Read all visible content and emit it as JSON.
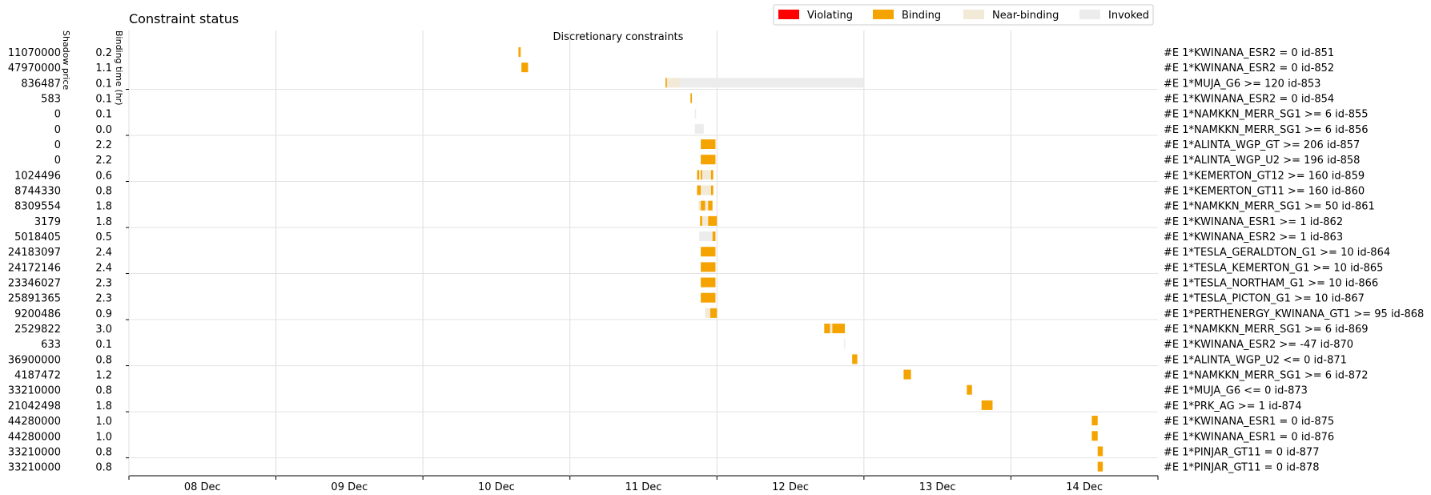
{
  "chart_data": {
    "type": "gantt",
    "title": "Constraint status",
    "subtitle": "Discretionary constraints",
    "col_headers": {
      "shadow_price": "Shadow price",
      "binding_time": "Binding time (hr)"
    },
    "legend": [
      {
        "key": "violating",
        "label": "Violating",
        "color": "#ff0000"
      },
      {
        "key": "binding",
        "label": "Binding",
        "color": "#f5a300"
      },
      {
        "key": "near",
        "label": "Near-binding",
        "color": "#f2ead6"
      },
      {
        "key": "invoked",
        "label": "Invoked",
        "color": "#ececec"
      }
    ],
    "legend_placement": "top-right",
    "x_ticks": [
      "08 Dec",
      "09 Dec",
      "10 Dec",
      "11 Dec",
      "12 Dec",
      "13 Dec",
      "14 Dec"
    ],
    "x_range_days": [
      7.5,
      14.5
    ],
    "grid": true,
    "rows": [
      {
        "shadow": "11070000",
        "time": "0.2",
        "label": "#E 1*KWINANA_ESR2 = 0 id-851",
        "segments": [
          {
            "start": 10.15,
            "end": 10.165,
            "status": "binding"
          }
        ]
      },
      {
        "shadow": "47970000",
        "time": "1.1",
        "label": "#E 1*KWINANA_ESR2 = 0 id-852",
        "segments": [
          {
            "start": 10.17,
            "end": 10.215,
            "status": "binding"
          }
        ]
      },
      {
        "shadow": "836487",
        "time": "0.1",
        "label": "#E 1*MUJA_G6 >= 120 id-853",
        "segments": [
          {
            "start": 11.15,
            "end": 11.16,
            "status": "binding"
          },
          {
            "start": 11.16,
            "end": 11.25,
            "status": "near"
          },
          {
            "start": 11.25,
            "end": 12.5,
            "status": "invoked"
          }
        ]
      },
      {
        "shadow": "583",
        "time": "0.1",
        "label": "#E 1*KWINANA_ESR2 = 0 id-854",
        "segments": [
          {
            "start": 11.32,
            "end": 11.33,
            "status": "binding"
          }
        ]
      },
      {
        "shadow": "0",
        "time": "0.1",
        "label": "#E 1*NAMKKN_MERR_SG1 >= 6 id-855",
        "segments": [
          {
            "start": 11.35,
            "end": 11.355,
            "status": "invoked"
          }
        ]
      },
      {
        "shadow": "0",
        "time": "0.0",
        "label": "#E 1*NAMKKN_MERR_SG1 >= 6 id-856",
        "segments": [
          {
            "start": 11.35,
            "end": 11.41,
            "status": "invoked"
          }
        ]
      },
      {
        "shadow": "0",
        "time": "2.2",
        "label": "#E 1*ALINTA_WGP_GT >= 206 id-857",
        "segments": [
          {
            "start": 11.39,
            "end": 11.49,
            "status": "binding"
          }
        ]
      },
      {
        "shadow": "0",
        "time": "2.2",
        "label": "#E 1*ALINTA_WGP_U2 >= 196 id-858",
        "segments": [
          {
            "start": 11.39,
            "end": 11.49,
            "status": "binding"
          }
        ]
      },
      {
        "shadow": "1024496",
        "time": "0.6",
        "label": "#E 1*KEMERTON_GT12 >= 160 id-859",
        "segments": [
          {
            "start": 11.365,
            "end": 11.38,
            "status": "binding"
          },
          {
            "start": 11.38,
            "end": 11.39,
            "status": "near"
          },
          {
            "start": 11.39,
            "end": 11.4,
            "status": "binding"
          },
          {
            "start": 11.4,
            "end": 11.46,
            "status": "near"
          },
          {
            "start": 11.46,
            "end": 11.475,
            "status": "binding"
          }
        ]
      },
      {
        "shadow": "8744330",
        "time": "0.8",
        "label": "#E 1*KEMERTON_GT11 >= 160 id-860",
        "segments": [
          {
            "start": 11.365,
            "end": 11.39,
            "status": "binding"
          },
          {
            "start": 11.39,
            "end": 11.46,
            "status": "near"
          },
          {
            "start": 11.46,
            "end": 11.475,
            "status": "binding"
          }
        ]
      },
      {
        "shadow": "8309554",
        "time": "1.8",
        "label": "#E 1*NAMKKN_MERR_SG1 >= 50 id-861",
        "segments": [
          {
            "start": 11.375,
            "end": 11.39,
            "status": "near"
          },
          {
            "start": 11.39,
            "end": 11.42,
            "status": "binding"
          },
          {
            "start": 11.42,
            "end": 11.44,
            "status": "near"
          },
          {
            "start": 11.44,
            "end": 11.47,
            "status": "binding"
          }
        ]
      },
      {
        "shadow": "3179",
        "time": "1.8",
        "label": "#E 1*KWINANA_ESR1 >= 1 id-862",
        "segments": [
          {
            "start": 11.385,
            "end": 11.4,
            "status": "binding"
          },
          {
            "start": 11.4,
            "end": 11.44,
            "status": "near"
          },
          {
            "start": 11.44,
            "end": 11.5,
            "status": "binding"
          }
        ]
      },
      {
        "shadow": "5018405",
        "time": "0.5",
        "label": "#E 1*KWINANA_ESR2 >= 1 id-863",
        "segments": [
          {
            "start": 11.38,
            "end": 11.47,
            "status": "invoked"
          },
          {
            "start": 11.47,
            "end": 11.49,
            "status": "binding"
          }
        ]
      },
      {
        "shadow": "24183097",
        "time": "2.4",
        "label": "#E 1*TESLA_GERALDTON_G1 >= 10 id-864",
        "segments": [
          {
            "start": 11.39,
            "end": 11.49,
            "status": "binding"
          }
        ]
      },
      {
        "shadow": "24172146",
        "time": "2.4",
        "label": "#E 1*TESLA_KEMERTON_G1 >= 10 id-865",
        "segments": [
          {
            "start": 11.39,
            "end": 11.49,
            "status": "binding"
          }
        ]
      },
      {
        "shadow": "23346027",
        "time": "2.3",
        "label": "#E 1*TESLA_NORTHAM_G1 >= 10 id-866",
        "segments": [
          {
            "start": 11.39,
            "end": 11.49,
            "status": "binding"
          }
        ]
      },
      {
        "shadow": "25891365",
        "time": "2.3",
        "label": "#E 1*TESLA_PICTON_G1 >= 10 id-867",
        "segments": [
          {
            "start": 11.39,
            "end": 11.49,
            "status": "binding"
          }
        ]
      },
      {
        "shadow": "9200486",
        "time": "0.9",
        "label": "#E 1*PERTHENERGY_KWINANA_GT1 >= 95 id-868",
        "segments": [
          {
            "start": 11.42,
            "end": 11.455,
            "status": "near"
          },
          {
            "start": 11.455,
            "end": 11.5,
            "status": "binding"
          }
        ]
      },
      {
        "shadow": "2529822",
        "time": "3.0",
        "label": "#E 1*NAMKKN_MERR_SG1 >= 6 id-869",
        "segments": [
          {
            "start": 12.23,
            "end": 12.27,
            "status": "binding"
          },
          {
            "start": 12.27,
            "end": 12.285,
            "status": "near"
          },
          {
            "start": 12.285,
            "end": 12.37,
            "status": "binding"
          }
        ]
      },
      {
        "shadow": "633",
        "time": "0.1",
        "label": "#E 1*KWINANA_ESR2 >= -47 id-870",
        "segments": [
          {
            "start": 12.365,
            "end": 12.372,
            "status": "invoked"
          }
        ]
      },
      {
        "shadow": "36900000",
        "time": "0.8",
        "label": "#E 1*ALINTA_WGP_U2 <= 0 id-871",
        "segments": [
          {
            "start": 12.42,
            "end": 12.455,
            "status": "binding"
          }
        ]
      },
      {
        "shadow": "4187472",
        "time": "1.2",
        "label": "#E 1*NAMKKN_MERR_SG1 >= 6 id-872",
        "segments": [
          {
            "start": 12.77,
            "end": 12.82,
            "status": "binding"
          }
        ]
      },
      {
        "shadow": "33210000",
        "time": "0.8",
        "label": "#E 1*MUJA_G6 <= 0 id-873",
        "segments": [
          {
            "start": 13.2,
            "end": 13.235,
            "status": "binding"
          }
        ]
      },
      {
        "shadow": "21042498",
        "time": "1.8",
        "label": "#E 1*PRK_AG >= 1 id-874",
        "segments": [
          {
            "start": 13.3,
            "end": 13.375,
            "status": "binding"
          }
        ]
      },
      {
        "shadow": "44280000",
        "time": "1.0",
        "label": "#E 1*KWINANA_ESR1 = 0 id-875",
        "segments": [
          {
            "start": 14.05,
            "end": 14.09,
            "status": "binding"
          }
        ]
      },
      {
        "shadow": "44280000",
        "time": "1.0",
        "label": "#E 1*KWINANA_ESR1 = 0 id-876",
        "segments": [
          {
            "start": 14.05,
            "end": 14.09,
            "status": "binding"
          }
        ]
      },
      {
        "shadow": "33210000",
        "time": "0.8",
        "label": "#E 1*PINJAR_GT11 = 0 id-877",
        "segments": [
          {
            "start": 14.09,
            "end": 14.125,
            "status": "binding"
          }
        ]
      },
      {
        "shadow": "33210000",
        "time": "0.8",
        "label": "#E 1*PINJAR_GT11 = 0 id-878",
        "segments": [
          {
            "start": 14.09,
            "end": 14.125,
            "status": "binding"
          }
        ]
      }
    ]
  }
}
